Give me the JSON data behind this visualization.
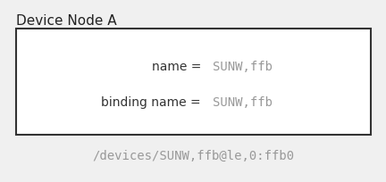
{
  "title": "Device Node A",
  "title_fontsize": 11,
  "title_color": "#222222",
  "row1_label": "name =",
  "row1_value": "SUNW,ffb",
  "row2_label": "binding name =",
  "row2_value": "SUNW,ffb",
  "footer": "/devices/SUNW,ffb@le,0:ffb0",
  "label_color": "#333333",
  "value_color": "#999999",
  "footer_color": "#999999",
  "box_facecolor": "#ffffff",
  "box_edgecolor": "#333333",
  "bg_color": "#f0f0f0",
  "label_fontsize": 10,
  "value_fontsize": 10,
  "footer_fontsize": 10,
  "fig_width": 4.32,
  "fig_height": 2.05,
  "dpi": 100
}
